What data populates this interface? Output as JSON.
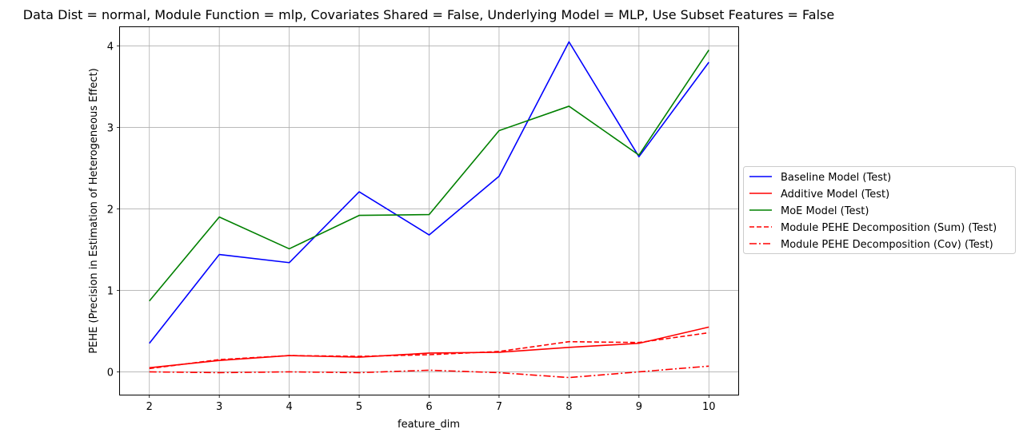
{
  "chart_data": {
    "type": "line",
    "title": "Data Dist = normal, Module Function = mlp, Covariates Shared = False, Underlying Model = MLP, Use Subset Features = False",
    "xlabel": "feature_dim",
    "ylabel": "PEHE (Precision in Estimation of Heterogeneous Effect)",
    "x": [
      2,
      3,
      4,
      5,
      6,
      7,
      8,
      9,
      10
    ],
    "xlim": [
      1.58,
      10.42
    ],
    "ylim": [
      -0.28,
      4.23
    ],
    "xticks": [
      "2",
      "3",
      "4",
      "5",
      "6",
      "7",
      "8",
      "9",
      "10"
    ],
    "yticks": [
      "0",
      "1",
      "2",
      "3",
      "4"
    ],
    "grid": true,
    "legend_position": "center-right outside",
    "series": [
      {
        "name": "Baseline Model (Test)",
        "color": "#0000ff",
        "style": "solid",
        "values": [
          0.35,
          1.44,
          1.34,
          2.21,
          1.68,
          2.4,
          4.05,
          2.64,
          3.8
        ]
      },
      {
        "name": "Additive Model (Test)",
        "color": "#ff0000",
        "style": "solid",
        "values": [
          0.05,
          0.14,
          0.2,
          0.18,
          0.23,
          0.24,
          0.3,
          0.35,
          0.55
        ]
      },
      {
        "name": "MoE Model (Test)",
        "color": "#008000",
        "style": "solid",
        "values": [
          0.87,
          1.9,
          1.51,
          1.92,
          1.93,
          2.96,
          3.26,
          2.66,
          3.95
        ]
      },
      {
        "name": "Module PEHE Decomposition (Sum) (Test)",
        "color": "#ff0000",
        "style": "dashed",
        "values": [
          0.04,
          0.15,
          0.2,
          0.19,
          0.21,
          0.25,
          0.37,
          0.36,
          0.48
        ]
      },
      {
        "name": "Module PEHE Decomposition (Cov) (Test)",
        "color": "#ff0000",
        "style": "dashdot",
        "values": [
          0.0,
          -0.01,
          0.0,
          -0.01,
          0.02,
          -0.01,
          -0.07,
          0.0,
          0.07
        ]
      }
    ]
  }
}
